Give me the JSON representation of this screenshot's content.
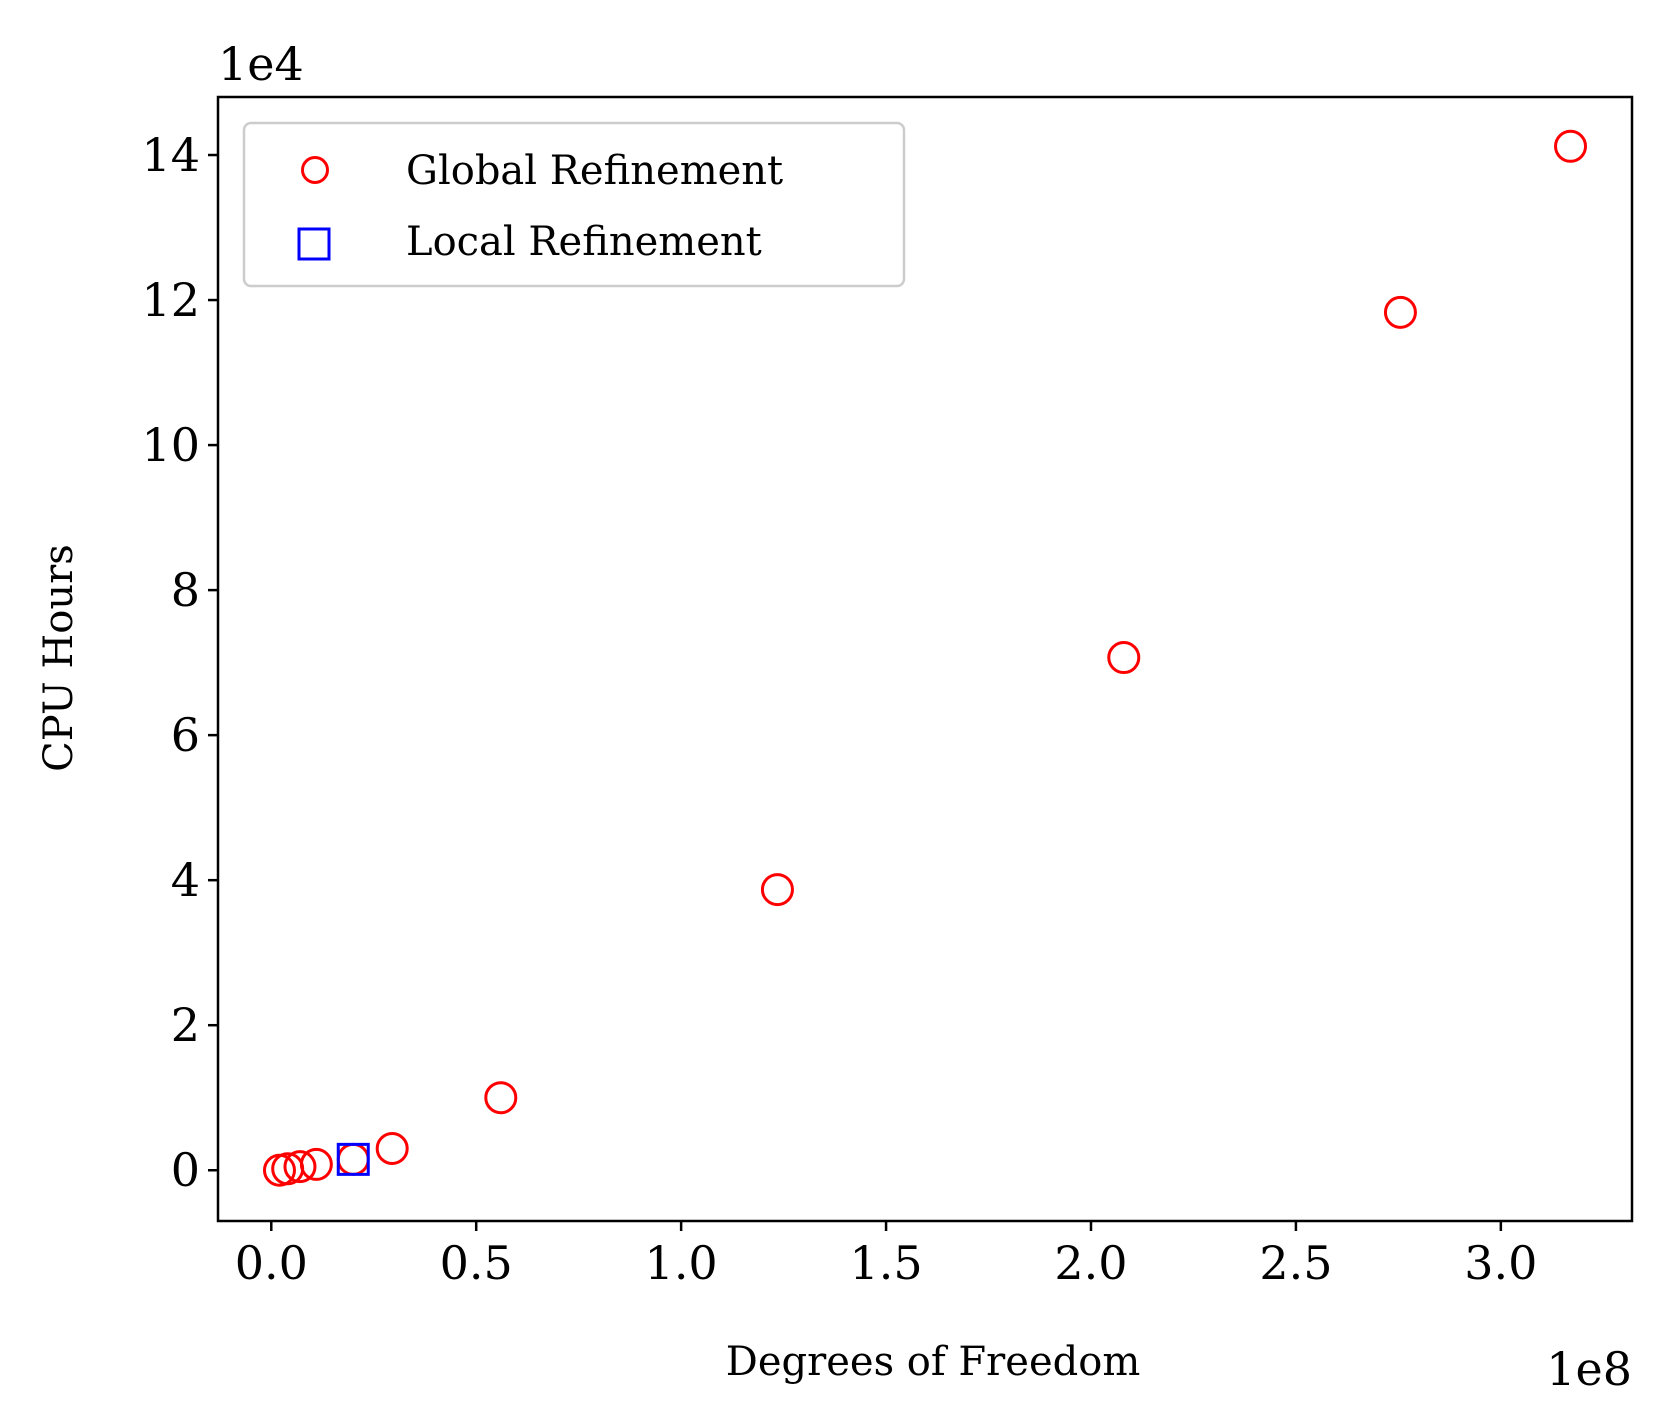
{
  "chart_data": {
    "type": "scatter",
    "title": "",
    "xlabel": "Degrees of Freedom",
    "ylabel": "CPU Hours",
    "x_offset_label": "1e8",
    "y_offset_label": "1e4",
    "xlim": [
      -0.13,
      3.32
    ],
    "ylim": [
      -0.7,
      14.8
    ],
    "x_ticks": [
      0.0,
      0.5,
      1.0,
      1.5,
      2.0,
      2.5,
      3.0
    ],
    "x_tick_labels": [
      "0.0",
      "0.5",
      "1.0",
      "1.5",
      "2.0",
      "2.5",
      "3.0"
    ],
    "y_ticks": [
      0,
      2,
      4,
      6,
      8,
      10,
      12,
      14
    ],
    "y_tick_labels": [
      "0",
      "2",
      "4",
      "6",
      "8",
      "10",
      "12",
      "14"
    ],
    "grid": false,
    "legend_position": "top-left",
    "series": [
      {
        "name": "Global Refinement",
        "marker": "circle",
        "color": "#ff0000",
        "points": [
          {
            "x": 0.02,
            "y": 0.0
          },
          {
            "x": 0.04,
            "y": 0.02
          },
          {
            "x": 0.07,
            "y": 0.05
          },
          {
            "x": 0.11,
            "y": 0.08
          },
          {
            "x": 0.2,
            "y": 0.15
          },
          {
            "x": 0.295,
            "y": 0.3
          },
          {
            "x": 0.56,
            "y": 1.0
          },
          {
            "x": 1.235,
            "y": 3.87
          },
          {
            "x": 2.08,
            "y": 7.07
          },
          {
            "x": 2.755,
            "y": 11.83
          },
          {
            "x": 3.17,
            "y": 14.12
          }
        ]
      },
      {
        "name": "Local Refinement",
        "marker": "square",
        "color": "#0000ff",
        "points": [
          {
            "x": 0.2,
            "y": 0.15
          }
        ]
      }
    ]
  }
}
